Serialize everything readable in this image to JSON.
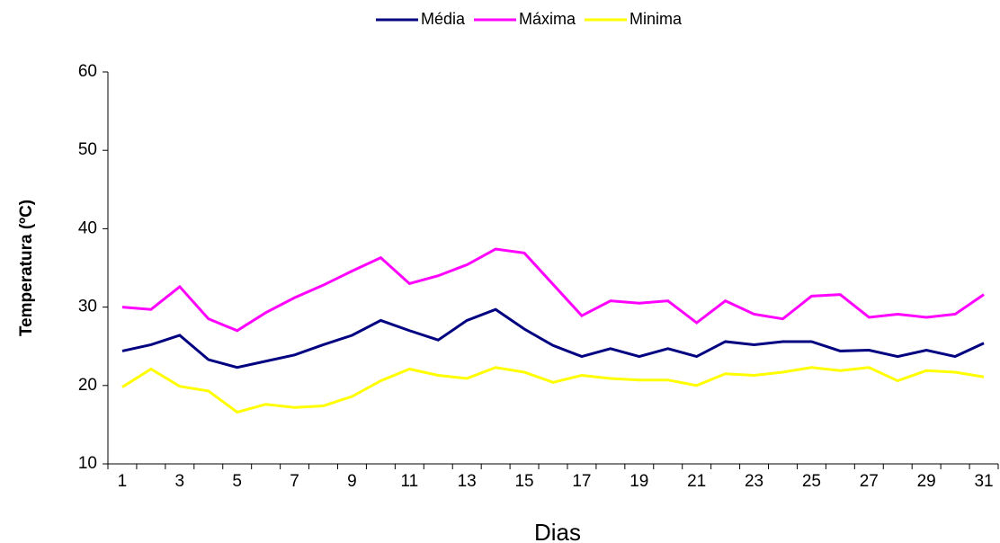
{
  "chart_data": {
    "type": "line",
    "x_label": "Dias",
    "y_label": "Temperatura (ºC)",
    "categories": [
      1,
      null,
      3,
      null,
      5,
      null,
      7,
      null,
      9,
      null,
      11,
      null,
      13,
      null,
      15,
      null,
      17,
      null,
      19,
      null,
      21,
      null,
      23,
      null,
      25,
      null,
      27,
      null,
      29,
      null,
      31
    ],
    "series": [
      {
        "name": "Média",
        "color": "#000080",
        "values": [
          24.4,
          25.2,
          26.4,
          23.3,
          22.3,
          23.1,
          23.9,
          25.2,
          26.4,
          28.3,
          27.0,
          25.8,
          28.3,
          29.7,
          27.2,
          25.1,
          23.7,
          24.7,
          23.7,
          24.7,
          23.7,
          25.6,
          25.2,
          25.6,
          25.6,
          24.4,
          24.5,
          23.7,
          24.5,
          23.7,
          25.4
        ]
      },
      {
        "name": "Máxima",
        "color": "#ff00ff",
        "values": [
          30.0,
          29.7,
          32.6,
          28.5,
          27.0,
          29.3,
          31.2,
          32.8,
          34.6,
          36.3,
          33.0,
          34.0,
          35.4,
          37.4,
          36.9,
          32.9,
          28.9,
          30.8,
          30.5,
          30.8,
          28.0,
          30.8,
          29.1,
          28.5,
          31.4,
          31.6,
          28.7,
          29.1,
          28.7,
          29.1,
          31.6
        ]
      },
      {
        "name": "Minima",
        "color": "#ffff00",
        "values": [
          19.8,
          22.1,
          19.9,
          19.3,
          16.6,
          17.6,
          17.2,
          17.4,
          18.6,
          20.6,
          22.1,
          21.3,
          20.9,
          22.3,
          21.7,
          20.4,
          21.3,
          20.9,
          20.7,
          20.7,
          20.0,
          21.5,
          21.3,
          21.7,
          22.3,
          21.9,
          22.3,
          20.6,
          21.9,
          21.7,
          21.1
        ]
      }
    ],
    "ylim": [
      10,
      60
    ],
    "yticks": [
      10,
      20,
      30,
      40,
      50,
      60
    ],
    "grid": false,
    "legend": "top"
  }
}
